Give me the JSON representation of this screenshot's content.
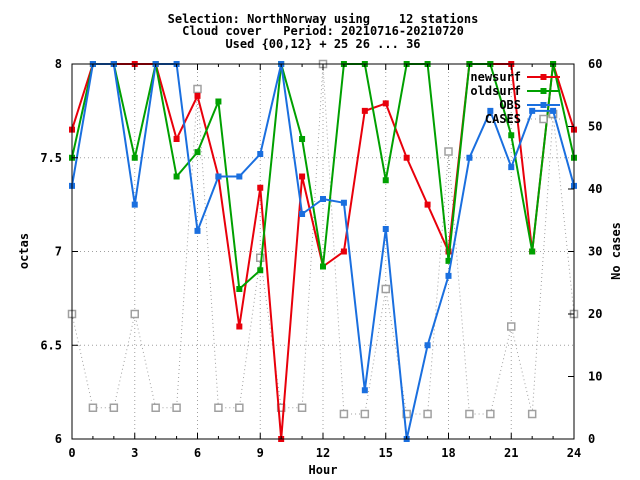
{
  "chart_data": {
    "type": "line",
    "title_lines": [
      "Selection: NorthNorway using    12 stations",
      "Cloud cover   Period: 20210716-20210720",
      "Used {00,12} + 25 26 ... 36"
    ],
    "xlabel": "Hour",
    "ylabel": "octas",
    "y2label": "No cases",
    "xlim": [
      0,
      24
    ],
    "ylim": [
      6,
      8
    ],
    "y2lim": [
      0,
      60
    ],
    "xticks": [
      "0",
      "3",
      "6",
      "9",
      "12",
      "15",
      "18",
      "21",
      "24"
    ],
    "yticks": [
      "6",
      "6.5",
      "7",
      "7.5",
      "8"
    ],
    "y2ticks": [
      "0",
      "10",
      "20",
      "30",
      "40",
      "50",
      "60"
    ],
    "grid": true,
    "legend_position": "top-right",
    "x": [
      0,
      1,
      2,
      3,
      4,
      5,
      6,
      7,
      8,
      9,
      10,
      11,
      12,
      13,
      14,
      15,
      16,
      17,
      18,
      19,
      20,
      21,
      22,
      23,
      24
    ],
    "series": [
      {
        "name": "newsurf",
        "color": "#e8000b",
        "axis": "left",
        "marker": "square",
        "values": [
          7.65,
          8.0,
          8.0,
          8.0,
          8.0,
          7.6,
          7.83,
          7.4,
          6.6,
          7.34,
          6.0,
          7.4,
          6.92,
          7.0,
          7.75,
          7.79,
          7.5,
          7.25,
          7.0,
          8.0,
          8.0,
          8.0,
          7.0,
          8.0,
          7.65
        ]
      },
      {
        "name": "oldsurf",
        "color": "#00a000",
        "axis": "left",
        "marker": "square",
        "values": [
          7.5,
          8.0,
          8.0,
          7.5,
          8.0,
          7.4,
          7.53,
          7.8,
          6.8,
          6.9,
          8.0,
          7.6,
          6.92,
          8.0,
          8.0,
          7.38,
          8.0,
          8.0,
          6.95,
          8.0,
          8.0,
          7.62,
          7.0,
          8.0,
          7.5
        ]
      },
      {
        "name": "OBS",
        "color": "#1a6fdf",
        "axis": "left",
        "marker": "square",
        "values": [
          7.35,
          8.0,
          8.0,
          7.25,
          8.0,
          8.0,
          7.11,
          7.4,
          7.4,
          7.52,
          8.0,
          7.2,
          7.28,
          7.26,
          6.26,
          7.12,
          6.0,
          6.5,
          6.87,
          7.5,
          7.75,
          7.45,
          7.75,
          7.75,
          7.35
        ]
      },
      {
        "name": "CASES",
        "color": "#a0a0a0",
        "axis": "right",
        "marker": "open-square",
        "values": [
          20,
          5,
          5,
          20,
          5,
          5,
          56,
          5,
          5,
          29,
          5,
          5,
          60,
          4,
          4,
          24,
          4,
          4,
          46,
          4,
          4,
          18,
          4,
          52,
          20
        ]
      }
    ]
  }
}
